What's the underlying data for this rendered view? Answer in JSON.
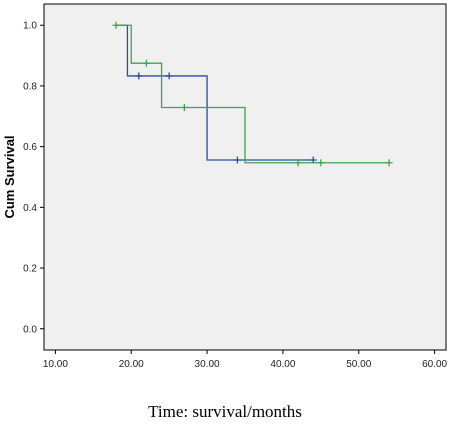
{
  "chart_data": {
    "type": "line",
    "subtype": "kaplan-meier-step",
    "title": "",
    "ylabel": "Cum Survival",
    "xlabel": "",
    "xlim": [
      8.5,
      61.5
    ],
    "ylim": [
      -0.07,
      1.07
    ],
    "x_ticks": [
      10,
      20,
      30,
      40,
      50,
      60
    ],
    "x_tick_labels": [
      "10.00",
      "20.00",
      "30.00",
      "40.00",
      "50.00",
      "60.00"
    ],
    "y_ticks": [
      0.0,
      0.2,
      0.4,
      0.6,
      0.8,
      1.0
    ],
    "y_tick_labels": [
      "0.0",
      "0.2",
      "0.4",
      "0.6",
      "0.8",
      "1.0"
    ],
    "grid": false,
    "plot_background": "#f0f0f0",
    "series": [
      {
        "color": "#2b4ea0",
        "steps": [
          [
            18,
            1.0
          ],
          [
            19.5,
            0.833
          ],
          [
            30,
            0.556
          ],
          [
            44,
            0.556
          ]
        ],
        "censored": [
          [
            21,
            0.833
          ],
          [
            25,
            0.833
          ],
          [
            34,
            0.556
          ],
          [
            44,
            0.556
          ]
        ]
      },
      {
        "color": "#3fa34d",
        "steps": [
          [
            18,
            1.0
          ],
          [
            20,
            0.875
          ],
          [
            24,
            0.729
          ],
          [
            35,
            0.547
          ],
          [
            54,
            0.547
          ]
        ],
        "censored": [
          [
            18,
            1.0
          ],
          [
            22,
            0.875
          ],
          [
            27,
            0.729
          ],
          [
            42,
            0.547
          ],
          [
            45,
            0.547
          ],
          [
            54,
            0.547
          ]
        ]
      }
    ]
  },
  "caption": "Time: survival/months"
}
